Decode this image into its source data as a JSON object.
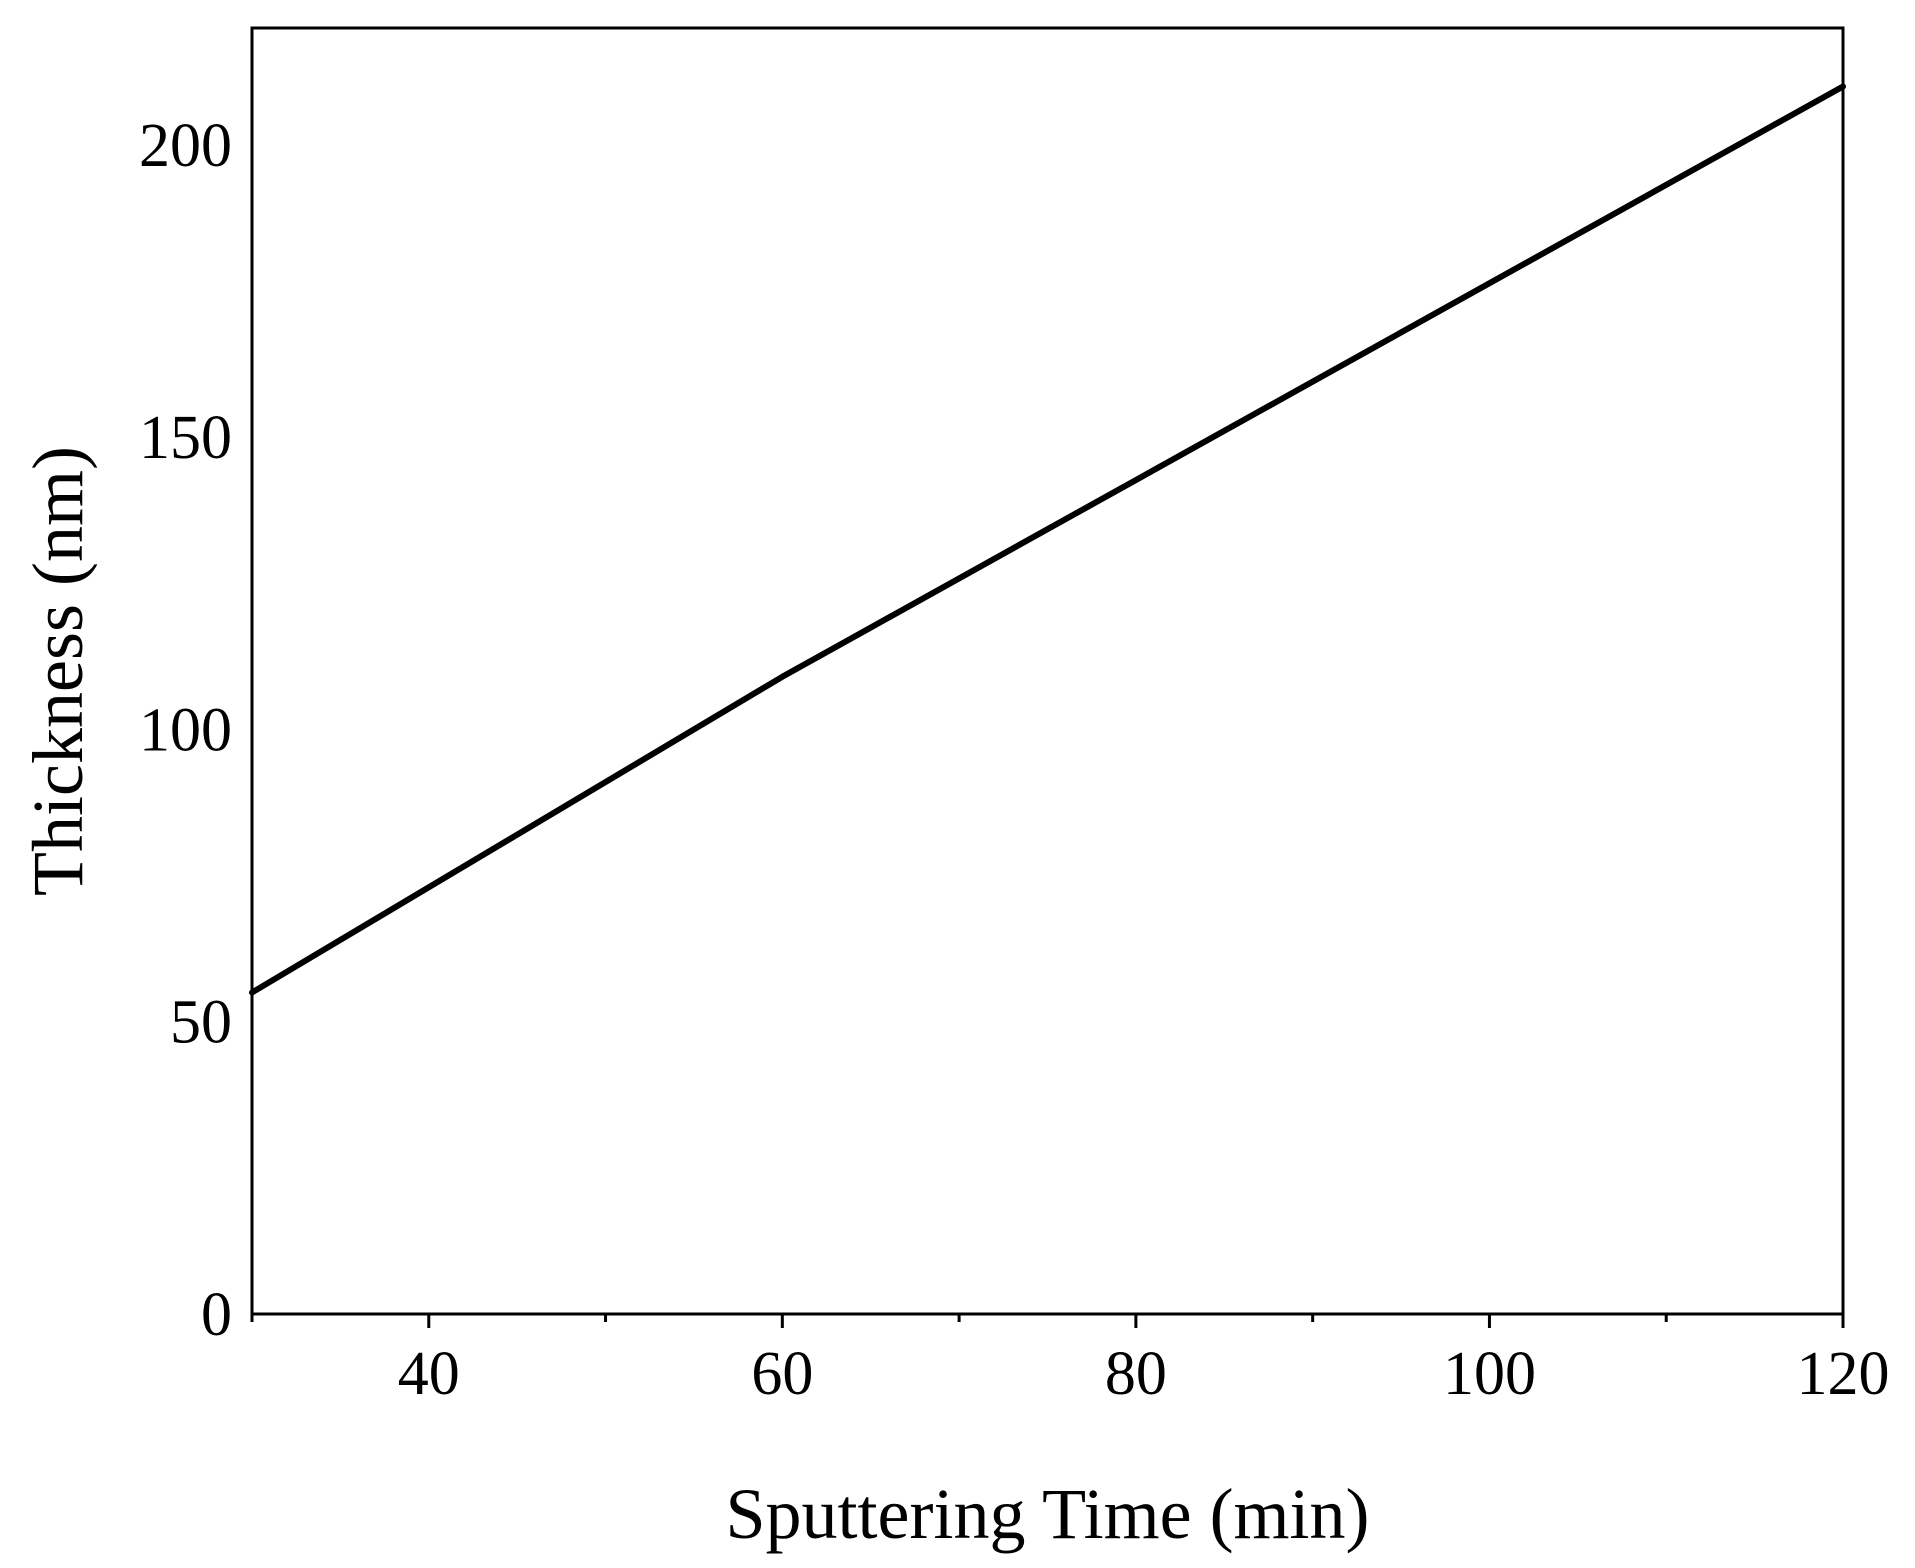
{
  "chart_data": {
    "type": "line",
    "title": "",
    "xlabel": "Sputtering Time (min)",
    "ylabel": "Thickness (nm)",
    "xlim": [
      30,
      120
    ],
    "ylim": [
      0,
      220
    ],
    "x_ticks": [
      40,
      60,
      80,
      100,
      120
    ],
    "x_tick_labels": [
      "40",
      "60",
      "80",
      "100",
      "120"
    ],
    "x_minor_ticks": [
      30,
      50,
      70,
      90,
      110
    ],
    "y_ticks": [
      0,
      50,
      100,
      150,
      200
    ],
    "y_tick_labels": [
      "0",
      "50",
      "100",
      "150",
      "200"
    ],
    "grid": false,
    "legend": "none",
    "line_color": "#000000",
    "series": [
      {
        "x": [
          30,
          60,
          120
        ],
        "y": [
          55,
          109,
          210
        ]
      }
    ]
  }
}
